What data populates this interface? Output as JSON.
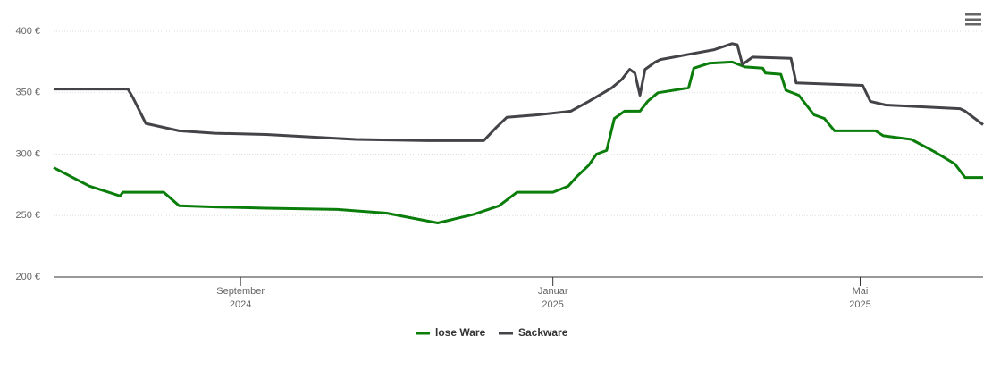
{
  "chart_data": {
    "type": "line",
    "xlim": [
      "2024-06-20",
      "2025-06-18"
    ],
    "xticks": [
      {
        "value": "2024-09-01",
        "label": [
          "September",
          "2024"
        ]
      },
      {
        "value": "2025-01-01",
        "label": [
          "Januar",
          "2025"
        ]
      },
      {
        "value": "2025-05-01",
        "label": [
          "Mai",
          "2025"
        ]
      }
    ],
    "ylim": [
      200,
      400
    ],
    "yticks": [
      {
        "value": 200,
        "label": "200 €"
      },
      {
        "value": 250,
        "label": "250 €"
      },
      {
        "value": 300,
        "label": "300 €"
      },
      {
        "value": 350,
        "label": "350 €"
      },
      {
        "value": 400,
        "label": "400 €"
      }
    ],
    "grid": true,
    "legend": "bottom",
    "series": [
      {
        "name": "lose Ware",
        "color": "#0a7d0a",
        "x": [
          "2024-06-20",
          "2024-07-04",
          "2024-07-16",
          "2024-07-17",
          "2024-08-02",
          "2024-08-08",
          "2024-08-22",
          "2024-09-11",
          "2024-10-09",
          "2024-10-28",
          "2024-11-17",
          "2024-12-01",
          "2024-12-11",
          "2024-12-18",
          "2025-01-01",
          "2025-01-07",
          "2025-01-10",
          "2025-01-15",
          "2025-01-18",
          "2025-01-22",
          "2025-01-25",
          "2025-01-29",
          "2025-02-04",
          "2025-02-07",
          "2025-02-11",
          "2025-02-23",
          "2025-02-25",
          "2025-03-03",
          "2025-03-12",
          "2025-03-17",
          "2025-03-24",
          "2025-03-25",
          "2025-03-31",
          "2025-04-02",
          "2025-04-07",
          "2025-04-13",
          "2025-04-17",
          "2025-04-21",
          "2025-05-07",
          "2025-05-10",
          "2025-05-21",
          "2025-05-30",
          "2025-06-07",
          "2025-06-11",
          "2025-06-18"
        ],
        "values": [
          289,
          274,
          266,
          269,
          269,
          258,
          257,
          256,
          255,
          252,
          244,
          251,
          258,
          269,
          269,
          274,
          281,
          291,
          300,
          303,
          329,
          335,
          335,
          343,
          350,
          354,
          370,
          374,
          375,
          371,
          370,
          366,
          365,
          352,
          348,
          332,
          329,
          319,
          319,
          315,
          312,
          302,
          292,
          281,
          281
        ]
      },
      {
        "name": "Sackware",
        "color": "#434348",
        "x": [
          "2024-06-20",
          "2024-07-19",
          "2024-07-21",
          "2024-07-26",
          "2024-08-08",
          "2024-08-22",
          "2024-09-11",
          "2024-10-16",
          "2024-11-13",
          "2024-12-05",
          "2024-12-10",
          "2024-12-14",
          "2024-12-26",
          "2025-01-08",
          "2025-01-15",
          "2025-01-24",
          "2025-01-28",
          "2025-01-31",
          "2025-02-02",
          "2025-02-04",
          "2025-02-06",
          "2025-02-10",
          "2025-02-12",
          "2025-03-05",
          "2025-03-12",
          "2025-03-14",
          "2025-03-16",
          "2025-03-20",
          "2025-04-04",
          "2025-04-06",
          "2025-05-02",
          "2025-05-05",
          "2025-05-11",
          "2025-06-09",
          "2025-06-11",
          "2025-06-18"
        ],
        "values": [
          353,
          353,
          346,
          325,
          319,
          317,
          316,
          312,
          311,
          311,
          322,
          330,
          332,
          335,
          343,
          354,
          361,
          369,
          366,
          348,
          369,
          375,
          377,
          385,
          390,
          389,
          373,
          379,
          378,
          358,
          356,
          343,
          340,
          337,
          335,
          324
        ]
      }
    ]
  }
}
